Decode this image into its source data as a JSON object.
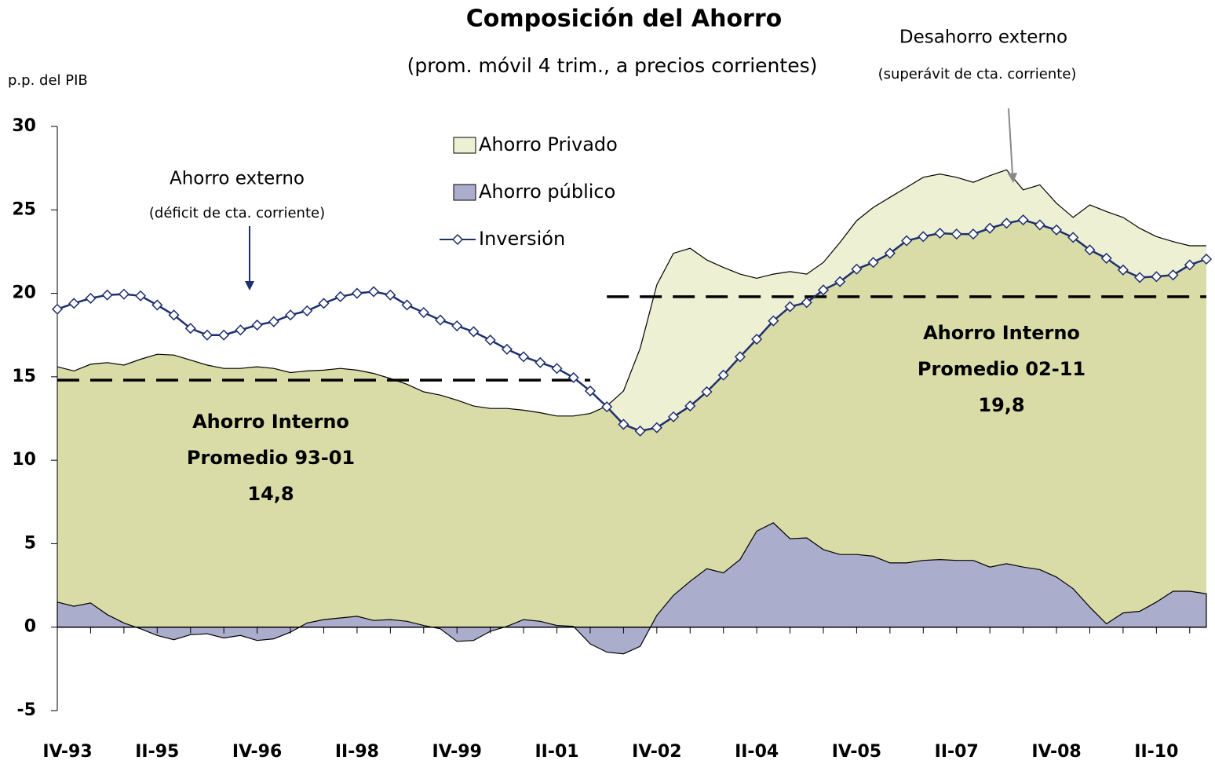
{
  "chart_data": {
    "type": "area",
    "stacked": true,
    "title": "Composición del Ahorro",
    "subtitle": "(prom. móvil 4 trim., a precios corrientes)",
    "y_label": "p.p. del PIB",
    "categories": [
      "IV-93",
      null,
      null,
      null,
      null,
      null,
      "II-95",
      null,
      null,
      null,
      null,
      null,
      "IV-96",
      null,
      null,
      null,
      null,
      null,
      "II-98",
      null,
      null,
      null,
      null,
      null,
      "IV-99",
      null,
      null,
      null,
      null,
      null,
      "II-01",
      null,
      null,
      null,
      null,
      null,
      "IV-02",
      null,
      null,
      null,
      null,
      null,
      "II-04",
      null,
      null,
      null,
      null,
      null,
      "IV-05",
      null,
      null,
      null,
      null,
      null,
      "II-07",
      null,
      null,
      null,
      null,
      null,
      "IV-08",
      null,
      null,
      null,
      null,
      null,
      "II-10",
      null,
      null,
      null
    ],
    "ylim": [
      -5,
      30
    ],
    "yticks": [
      -5,
      0,
      5,
      10,
      15,
      20,
      25,
      30
    ],
    "grid": false,
    "surplus_color": "#eef0d4",
    "series": [
      {
        "name": "Ahorro Privado",
        "type": "area",
        "color": "#d9dca6",
        "values": [
          14.1,
          14.1,
          14.3,
          15.1,
          15.45,
          16.15,
          16.85,
          17.05,
          16.45,
          16.1,
          16.15,
          16.0,
          16.4,
          16.2,
          15.55,
          15.1,
          14.95,
          14.95,
          14.75,
          14.8,
          14.45,
          14.2,
          14.0,
          14.0,
          14.45,
          14.05,
          13.35,
          13.05,
          12.55,
          12.5,
          12.55,
          12.6,
          13.8,
          14.75,
          15.75,
          17.85,
          19.8,
          20.5,
          19.95,
          18.5,
          18.3,
          17.1,
          15.15,
          14.9,
          16.0,
          15.8,
          17.2,
          18.7,
          20.0,
          20.9,
          21.9,
          22.5,
          22.95,
          23.1,
          22.95,
          22.65,
          23.45,
          23.6,
          22.6,
          23.05,
          22.4,
          22.25,
          24.1,
          24.7,
          23.7,
          22.95,
          21.9,
          20.95,
          20.7,
          20.85
        ]
      },
      {
        "name": "Ahorro público",
        "type": "area",
        "color": "#abadcc",
        "values": [
          1.5,
          1.25,
          1.45,
          0.75,
          0.25,
          -0.1,
          -0.5,
          -0.75,
          -0.45,
          -0.4,
          -0.65,
          -0.5,
          -0.8,
          -0.7,
          -0.3,
          0.25,
          0.45,
          0.55,
          0.65,
          0.4,
          0.45,
          0.35,
          0.1,
          -0.1,
          -0.85,
          -0.8,
          -0.25,
          0.05,
          0.45,
          0.35,
          0.1,
          0.05,
          -1.0,
          -1.5,
          -1.6,
          -1.15,
          0.7,
          1.9,
          2.75,
          3.5,
          3.25,
          4.05,
          5.75,
          6.25,
          5.3,
          5.35,
          4.65,
          4.35,
          4.35,
          4.25,
          3.85,
          3.85,
          4.0,
          4.05,
          4.0,
          4.0,
          3.6,
          3.8,
          3.6,
          3.45,
          3.0,
          2.3,
          1.2,
          0.2,
          0.85,
          0.95,
          1.5,
          2.15,
          2.15,
          2.0
        ]
      },
      {
        "name": "Inversión",
        "type": "line",
        "color": "#1f2f6e",
        "stacked": false,
        "values": [
          19.05,
          19.4,
          19.7,
          19.9,
          19.95,
          19.85,
          19.3,
          18.7,
          17.9,
          17.5,
          17.5,
          17.8,
          18.1,
          18.3,
          18.7,
          18.95,
          19.4,
          19.8,
          20.0,
          20.1,
          19.9,
          19.3,
          18.85,
          18.4,
          18.05,
          17.7,
          17.2,
          16.65,
          16.2,
          15.85,
          15.5,
          14.95,
          14.15,
          13.2,
          12.15,
          11.75,
          11.95,
          12.6,
          13.25,
          14.1,
          15.1,
          16.2,
          17.25,
          18.35,
          19.2,
          19.45,
          20.2,
          20.7,
          21.45,
          21.85,
          22.4,
          23.15,
          23.4,
          23.6,
          23.55,
          23.55,
          23.9,
          24.2,
          24.4,
          24.1,
          23.8,
          23.35,
          22.6,
          22.1,
          21.4,
          20.95,
          21.0,
          21.1,
          21.7,
          22.05
        ]
      }
    ],
    "reference_lines": [
      {
        "value": 14.8,
        "title": "Ahorro Interno",
        "period": "Promedio 93-01",
        "value_label": "14,8"
      },
      {
        "value": 19.8,
        "title": "Ahorro Interno",
        "period": "Promedio 02-11",
        "value_label": "19,8"
      }
    ],
    "annotations": [
      {
        "text": "Ahorro externo",
        "note": "(déficit de cta. corriente)",
        "color": "#e8102a"
      },
      {
        "text": "Desahorro externo",
        "note": "(superávit de cta. corriente)",
        "color": "#7f8a14"
      }
    ]
  }
}
